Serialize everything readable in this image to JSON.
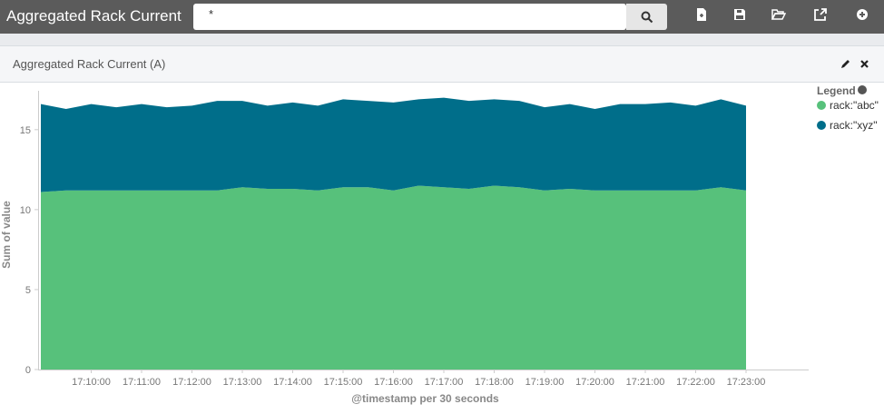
{
  "app": {
    "title": "Aggregated Rack Current"
  },
  "search": {
    "value": "*"
  },
  "toolbar": {
    "icons": [
      "search-icon",
      "new-document-icon",
      "save-icon",
      "open-folder-icon",
      "share-icon",
      "add-icon"
    ]
  },
  "panel": {
    "title": "Aggregated Rack Current (A)"
  },
  "legend": {
    "title": "Legend",
    "items": [
      {
        "label": "rack:\"abc\"",
        "color": "#57c17b"
      },
      {
        "label": "rack:\"xyz\"",
        "color": "#006e8a"
      }
    ]
  },
  "chart_data": {
    "type": "area",
    "stacked": true,
    "xlabel": "@timestamp per 30 seconds",
    "ylabel": "Sum of value",
    "ylim": [
      0,
      18
    ],
    "yticks": [
      0,
      5,
      10,
      15
    ],
    "xtick_labels": [
      "17:10:00",
      "17:11:00",
      "17:12:00",
      "17:13:00",
      "17:14:00",
      "17:15:00",
      "17:16:00",
      "17:17:00",
      "17:18:00",
      "17:19:00",
      "17:20:00",
      "17:21:00",
      "17:22:00",
      "17:23:00"
    ],
    "x": [
      "17:09:00",
      "17:09:30",
      "17:10:00",
      "17:10:30",
      "17:11:00",
      "17:11:30",
      "17:12:00",
      "17:12:30",
      "17:13:00",
      "17:13:30",
      "17:14:00",
      "17:14:30",
      "17:15:00",
      "17:15:30",
      "17:16:00",
      "17:16:30",
      "17:17:00",
      "17:17:30",
      "17:18:00",
      "17:18:30",
      "17:19:00",
      "17:19:30",
      "17:20:00",
      "17:20:30",
      "17:21:00",
      "17:21:30",
      "17:22:00",
      "17:22:30",
      "17:23:00"
    ],
    "series": [
      {
        "name": "rack:\"abc\"",
        "values": [
          11.1,
          11.2,
          11.2,
          11.2,
          11.2,
          11.2,
          11.2,
          11.2,
          11.4,
          11.3,
          11.3,
          11.2,
          11.4,
          11.4,
          11.2,
          11.5,
          11.4,
          11.3,
          11.5,
          11.4,
          11.2,
          11.3,
          11.2,
          11.2,
          11.2,
          11.2,
          11.2,
          11.4,
          11.2
        ]
      },
      {
        "name": "rack:\"xyz\"",
        "values": [
          5.5,
          5.1,
          5.4,
          5.2,
          5.4,
          5.2,
          5.3,
          5.6,
          5.4,
          5.2,
          5.4,
          5.3,
          5.5,
          5.4,
          5.5,
          5.4,
          5.6,
          5.5,
          5.4,
          5.4,
          5.2,
          5.3,
          5.1,
          5.4,
          5.4,
          5.5,
          5.3,
          5.5,
          5.3
        ]
      }
    ],
    "grid": false,
    "legend_position": "right"
  }
}
